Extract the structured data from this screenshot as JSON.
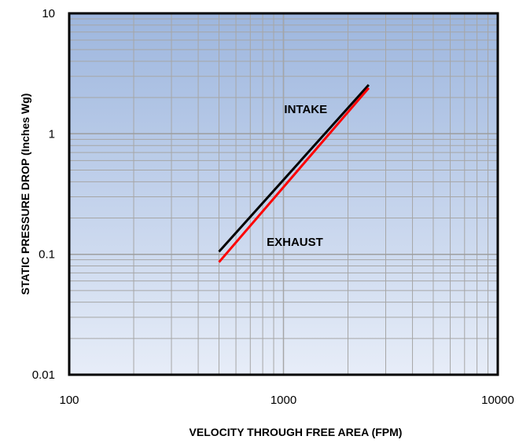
{
  "chart_data": {
    "type": "line",
    "title": "",
    "xlabel": "VELOCITY THROUGH FREE AREA (FPM)",
    "ylabel": "STATIC PRESSURE DROP (Inches Wg)",
    "xscale": "log",
    "yscale": "log",
    "xlim": [
      100,
      10000
    ],
    "ylim": [
      0.01,
      10
    ],
    "x_ticks": [
      100,
      1000,
      10000
    ],
    "x_tick_labels": [
      "100",
      "1000",
      "10000"
    ],
    "y_ticks": [
      0.01,
      0.1,
      1,
      10
    ],
    "y_tick_labels": [
      "0.01",
      "0.1",
      "1",
      "10"
    ],
    "grid": true,
    "background": "blue gradient",
    "series": [
      {
        "name": "INTAKE",
        "color": "#000000",
        "x": [
          500,
          2500
        ],
        "y": [
          0.105,
          2.55
        ]
      },
      {
        "name": "EXHAUST",
        "color": "#ff0000",
        "x": [
          500,
          2500
        ],
        "y": [
          0.086,
          2.4
        ]
      }
    ],
    "annotations": [
      {
        "text": "INTAKE",
        "x": 1270,
        "y": 1.48
      },
      {
        "text": "EXHAUST",
        "x": 1130,
        "y": 0.117
      }
    ]
  }
}
